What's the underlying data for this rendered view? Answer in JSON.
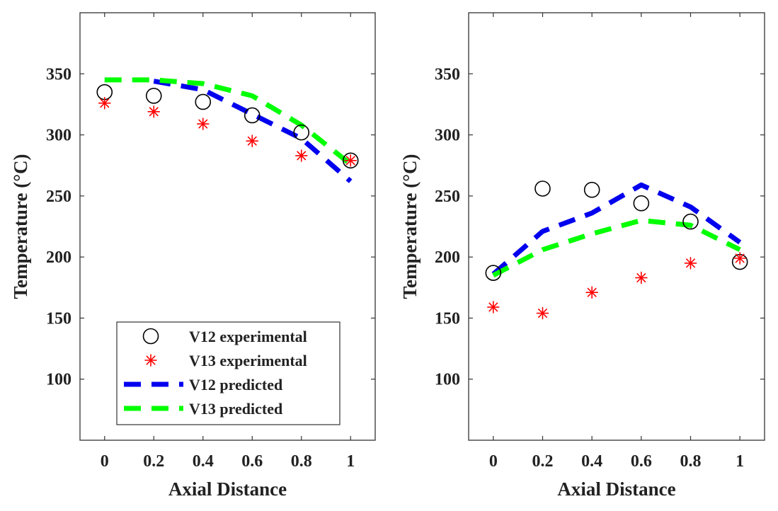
{
  "chart_data": [
    {
      "type": "line",
      "xlabel": "Axial Distance",
      "ylabel": "Temperature (°C)",
      "xlim": [
        -0.1,
        1.1
      ],
      "ylim": [
        50,
        400
      ],
      "xticks": [
        0,
        0.2,
        0.4,
        0.6,
        0.8,
        1
      ],
      "xtick_labels": [
        "0",
        "0.2",
        "0.4",
        "0.6",
        "0.8",
        "1"
      ],
      "yticks": [
        100,
        150,
        200,
        250,
        300,
        350
      ],
      "ytick_labels": [
        "100",
        "150",
        "200",
        "250",
        "300",
        "350"
      ],
      "legend": {
        "position": "bottom-right",
        "entries": [
          "V12 experimental",
          "V13 experimental",
          "V12 predicted",
          "V13 predicted"
        ]
      },
      "series": [
        {
          "name": "V12 experimental",
          "style": "circle",
          "color": "#000000",
          "x": [
            0,
            0.2,
            0.4,
            0.6,
            0.8,
            1
          ],
          "y": [
            335,
            332,
            327,
            316,
            302,
            279
          ]
        },
        {
          "name": "V13 experimental",
          "style": "asterisk",
          "color": "#ff0000",
          "x": [
            0,
            0.2,
            0.4,
            0.6,
            0.8,
            1
          ],
          "y": [
            326,
            319,
            309,
            295,
            283,
            279
          ]
        },
        {
          "name": "V12 predicted",
          "style": "dashed",
          "color": "#0000ee",
          "x": [
            0.2,
            0.4,
            0.6,
            0.8,
            1
          ],
          "y": [
            344,
            337,
            317,
            297,
            262
          ]
        },
        {
          "name": "V13 predicted",
          "style": "dashed",
          "color": "#00ff00",
          "x": [
            0,
            0.2,
            0.4,
            0.6,
            0.8,
            1
          ],
          "y": [
            345,
            345,
            342,
            332,
            308,
            276
          ]
        }
      ]
    },
    {
      "type": "line",
      "xlabel": "Axial Distance",
      "ylabel": "Temperature (°C)",
      "xlim": [
        -0.1,
        1.1
      ],
      "ylim": [
        50,
        400
      ],
      "xticks": [
        0,
        0.2,
        0.4,
        0.6,
        0.8,
        1
      ],
      "xtick_labels": [
        "0",
        "0.2",
        "0.4",
        "0.6",
        "0.8",
        "1"
      ],
      "yticks": [
        100,
        150,
        200,
        250,
        300,
        350
      ],
      "ytick_labels": [
        "100",
        "150",
        "200",
        "250",
        "300",
        "350"
      ],
      "series": [
        {
          "name": "V12 experimental",
          "style": "circle",
          "color": "#000000",
          "x": [
            0,
            0.2,
            0.4,
            0.6,
            0.8,
            1
          ],
          "y": [
            187,
            256,
            255,
            244,
            229,
            196
          ]
        },
        {
          "name": "V13 experimental",
          "style": "asterisk",
          "color": "#ff0000",
          "x": [
            0,
            0.2,
            0.4,
            0.6,
            0.8,
            1
          ],
          "y": [
            159,
            154,
            171,
            183,
            195,
            199
          ]
        },
        {
          "name": "V12 predicted",
          "style": "dashed",
          "color": "#0000ee",
          "x": [
            0,
            0.2,
            0.4,
            0.6,
            0.8,
            1
          ],
          "y": [
            186,
            221,
            236,
            259,
            241,
            212
          ]
        },
        {
          "name": "V13 predicted",
          "style": "dashed",
          "color": "#00ff00",
          "x": [
            0,
            0.2,
            0.4,
            0.6,
            0.8,
            1
          ],
          "y": [
            185,
            206,
            219,
            230,
            226,
            206
          ]
        }
      ]
    }
  ]
}
